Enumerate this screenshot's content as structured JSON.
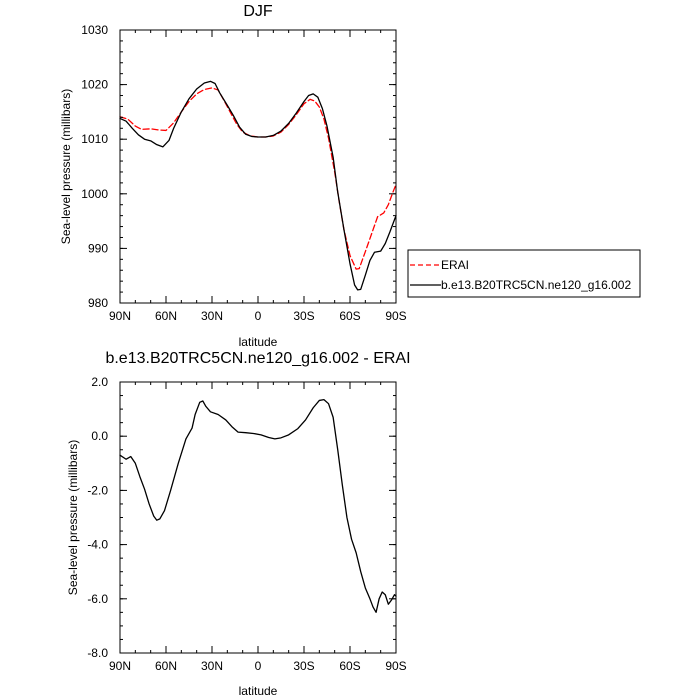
{
  "chart_data": [
    {
      "type": "line",
      "title": "DJF",
      "xlabel": "latitude",
      "ylabel": "Sea-level pressure (millibars)",
      "xlim": [
        -90,
        90
      ],
      "ylim": [
        980,
        1030
      ],
      "x_ticks": [
        {
          "value": -90,
          "label": "90N"
        },
        {
          "value": -60,
          "label": "60N"
        },
        {
          "value": -30,
          "label": "30N"
        },
        {
          "value": 0,
          "label": "0"
        },
        {
          "value": 30,
          "label": "30S"
        },
        {
          "value": 60,
          "label": "60S"
        },
        {
          "value": 90,
          "label": "90S"
        }
      ],
      "y_ticks": [
        {
          "value": 980,
          "label": "980"
        },
        {
          "value": 990,
          "label": "990"
        },
        {
          "value": 1000,
          "label": "1000"
        },
        {
          "value": 1010,
          "label": "1010"
        },
        {
          "value": 1020,
          "label": "1020"
        },
        {
          "value": 1030,
          "label": "1030"
        }
      ],
      "legend": {
        "placement": "outside-right"
      },
      "series": [
        {
          "name": "ERAI",
          "color": "#ff0000",
          "dash": "dashed",
          "points": [
            [
              -90,
              1014.1
            ],
            [
              -85,
              1013.7
            ],
            [
              -80,
              1012.4
            ],
            [
              -76,
              1011.8
            ],
            [
              -70,
              1011.9
            ],
            [
              -65,
              1011.7
            ],
            [
              -60,
              1011.6
            ],
            [
              -55,
              1013.0
            ],
            [
              -50,
              1015.0
            ],
            [
              -45,
              1016.9
            ],
            [
              -40,
              1018.3
            ],
            [
              -35,
              1019.1
            ],
            [
              -30,
              1019.4
            ],
            [
              -26,
              1019.0
            ],
            [
              -22,
              1017.0
            ],
            [
              -18,
              1014.9
            ],
            [
              -14,
              1012.8
            ],
            [
              -10,
              1011.3
            ],
            [
              -5,
              1010.6
            ],
            [
              0,
              1010.4
            ],
            [
              5,
              1010.4
            ],
            [
              10,
              1010.6
            ],
            [
              15,
              1011.3
            ],
            [
              20,
              1012.7
            ],
            [
              25,
              1014.5
            ],
            [
              30,
              1016.5
            ],
            [
              34,
              1017.3
            ],
            [
              37,
              1017.0
            ],
            [
              40,
              1015.9
            ],
            [
              43,
              1013.7
            ],
            [
              46,
              1010.2
            ],
            [
              50,
              1004.0
            ],
            [
              53,
              998.5
            ],
            [
              56,
              993.5
            ],
            [
              60,
              988.7
            ],
            [
              64,
              986.2
            ],
            [
              66,
              986.3
            ],
            [
              70,
              989.4
            ],
            [
              75,
              993.4
            ],
            [
              78,
              995.8
            ],
            [
              82,
              996.5
            ],
            [
              85,
              998.0
            ],
            [
              88,
              1000.3
            ],
            [
              90,
              1001.7
            ]
          ]
        },
        {
          "name": "b.e13.B20TRC5CN.ne120_g16.002",
          "color": "#000000",
          "dash": "solid",
          "points": [
            [
              -90,
              1013.8
            ],
            [
              -86,
              1013.3
            ],
            [
              -82,
              1012.0
            ],
            [
              -78,
              1010.8
            ],
            [
              -74,
              1010.0
            ],
            [
              -70,
              1009.7
            ],
            [
              -66,
              1009.0
            ],
            [
              -62,
              1008.6
            ],
            [
              -58,
              1009.8
            ],
            [
              -55,
              1012.0
            ],
            [
              -50,
              1015.0
            ],
            [
              -45,
              1017.4
            ],
            [
              -40,
              1019.2
            ],
            [
              -35,
              1020.3
            ],
            [
              -31,
              1020.6
            ],
            [
              -28,
              1020.2
            ],
            [
              -25,
              1018.5
            ],
            [
              -20,
              1016.2
            ],
            [
              -16,
              1014.3
            ],
            [
              -12,
              1012.2
            ],
            [
              -8,
              1010.9
            ],
            [
              -4,
              1010.5
            ],
            [
              0,
              1010.4
            ],
            [
              5,
              1010.4
            ],
            [
              10,
              1010.7
            ],
            [
              15,
              1011.5
            ],
            [
              20,
              1012.9
            ],
            [
              25,
              1014.8
            ],
            [
              30,
              1016.9
            ],
            [
              33,
              1018.0
            ],
            [
              36,
              1018.3
            ],
            [
              39,
              1017.7
            ],
            [
              42,
              1015.6
            ],
            [
              45,
              1012.4
            ],
            [
              49,
              1006.7
            ],
            [
              52,
              1000.3
            ],
            [
              56,
              993.5
            ],
            [
              60,
              987.2
            ],
            [
              63,
              983.3
            ],
            [
              65,
              982.4
            ],
            [
              67,
              982.5
            ],
            [
              70,
              985.1
            ],
            [
              73,
              987.8
            ],
            [
              76,
              989.3
            ],
            [
              80,
              989.5
            ],
            [
              83,
              990.9
            ],
            [
              86,
              993.0
            ],
            [
              90,
              996.0
            ]
          ]
        }
      ]
    },
    {
      "type": "line",
      "title": "b.e13.B20TRC5CN.ne120_g16.002 - ERAI",
      "xlabel": "latitude",
      "ylabel": "Sea-level pressure (millibars)",
      "xlim": [
        -90,
        90
      ],
      "ylim": [
        -8.0,
        2.0
      ],
      "x_ticks": [
        {
          "value": -90,
          "label": "90N"
        },
        {
          "value": -60,
          "label": "60N"
        },
        {
          "value": -30,
          "label": "30N"
        },
        {
          "value": 0,
          "label": "0"
        },
        {
          "value": 30,
          "label": "30S"
        },
        {
          "value": 60,
          "label": "60S"
        },
        {
          "value": 90,
          "label": "90S"
        }
      ],
      "y_ticks": [
        {
          "value": 2.0,
          "label": "2.0"
        },
        {
          "value": 0.0,
          "label": "0.0"
        },
        {
          "value": -2.0,
          "label": "-2.0"
        },
        {
          "value": -4.0,
          "label": "-4.0"
        },
        {
          "value": -6.0,
          "label": "-6.0"
        },
        {
          "value": -8.0,
          "label": "-8.0"
        }
      ],
      "series": [
        {
          "color": "#000000",
          "dash": "solid",
          "points": [
            [
              -90,
              -0.7
            ],
            [
              -86,
              -0.85
            ],
            [
              -83,
              -0.75
            ],
            [
              -80,
              -1.0
            ],
            [
              -77,
              -1.5
            ],
            [
              -74,
              -1.95
            ],
            [
              -71,
              -2.5
            ],
            [
              -68,
              -2.95
            ],
            [
              -66,
              -3.1
            ],
            [
              -64,
              -3.05
            ],
            [
              -61,
              -2.75
            ],
            [
              -57,
              -2.0
            ],
            [
              -52,
              -1.0
            ],
            [
              -47,
              -0.1
            ],
            [
              -43,
              0.3
            ],
            [
              -41,
              0.8
            ],
            [
              -38,
              1.25
            ],
            [
              -36,
              1.3
            ],
            [
              -34,
              1.1
            ],
            [
              -31,
              0.9
            ],
            [
              -26,
              0.8
            ],
            [
              -21,
              0.6
            ],
            [
              -17,
              0.35
            ],
            [
              -13,
              0.15
            ],
            [
              -8,
              0.13
            ],
            [
              -3,
              0.1
            ],
            [
              2,
              0.05
            ],
            [
              7,
              -0.05
            ],
            [
              11,
              -0.1
            ],
            [
              15,
              -0.06
            ],
            [
              20,
              0.05
            ],
            [
              26,
              0.28
            ],
            [
              31,
              0.6
            ],
            [
              36,
              1.05
            ],
            [
              40,
              1.32
            ],
            [
              43,
              1.35
            ],
            [
              46,
              1.2
            ],
            [
              49,
              0.7
            ],
            [
              52,
              -0.5
            ],
            [
              55,
              -1.8
            ],
            [
              58,
              -3.0
            ],
            [
              61,
              -3.8
            ],
            [
              64,
              -4.3
            ],
            [
              67,
              -5.0
            ],
            [
              70,
              -5.6
            ],
            [
              73,
              -6.0
            ],
            [
              75,
              -6.3
            ],
            [
              77,
              -6.5
            ],
            [
              79,
              -6.0
            ],
            [
              81,
              -5.75
            ],
            [
              83,
              -5.85
            ],
            [
              85,
              -6.2
            ],
            [
              87,
              -6.05
            ],
            [
              89,
              -5.85
            ],
            [
              90,
              -5.9
            ]
          ]
        }
      ]
    }
  ]
}
